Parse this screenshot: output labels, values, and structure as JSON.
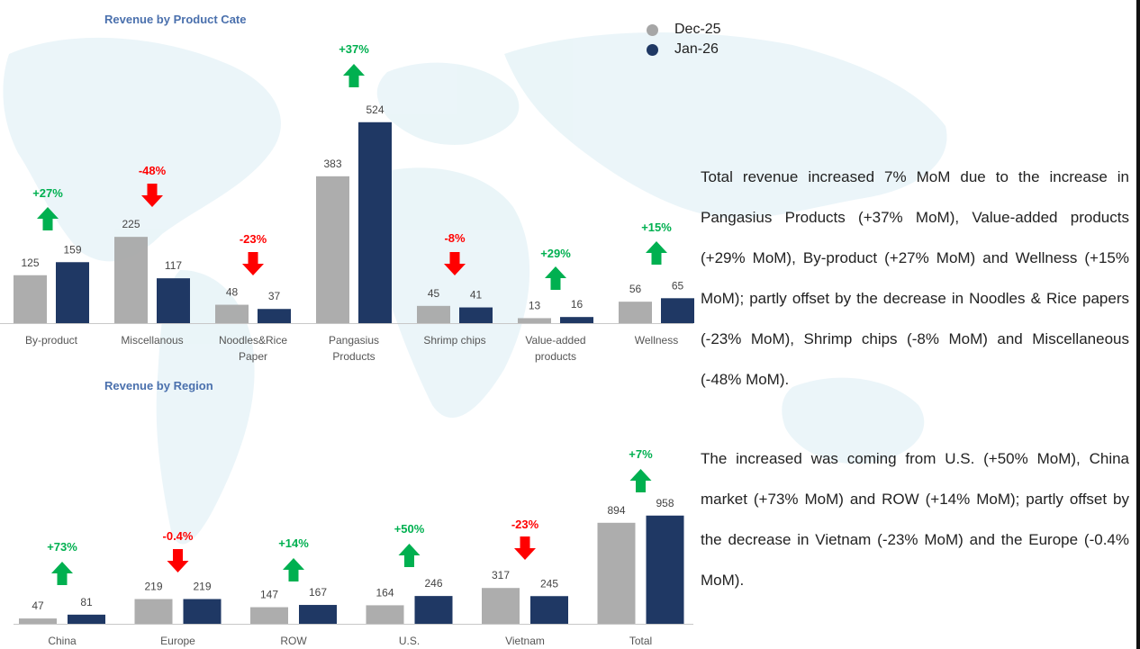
{
  "legend": {
    "items": [
      {
        "label": "Dec-25",
        "color": "#a6a6a6"
      },
      {
        "label": "Jan-26",
        "color": "#1f3864"
      }
    ]
  },
  "colors": {
    "up": "#00b050",
    "down": "#ff0000",
    "prev": "#a6a6a6",
    "curr": "#1f3864"
  },
  "icons": {
    "up": "up-arrow-icon",
    "down": "down-arrow-icon",
    "background": "world-map"
  },
  "chart_data": [
    {
      "type": "bar",
      "title": "Revenue by Product Cate",
      "categories": [
        "By-product",
        "Miscellanous",
        "Noodles&Rice Paper",
        "Pangasius Products",
        "Shrimp chips",
        "Value-added products",
        "Wellness"
      ],
      "series": [
        {
          "name": "Dec-25",
          "values": [
            125,
            225,
            48,
            383,
            45,
            13,
            56
          ]
        },
        {
          "name": "Jan-26",
          "values": [
            159,
            117,
            37,
            524,
            41,
            16,
            65
          ]
        }
      ],
      "changes": [
        "+27%",
        "-48%",
        "-23%",
        "+37%",
        "-8%",
        "+29%",
        "+15%"
      ],
      "directions": [
        "up",
        "down",
        "down",
        "up",
        "down",
        "up",
        "up"
      ]
    },
    {
      "type": "bar",
      "title": "Revenue by Region",
      "categories": [
        "China",
        "Europe",
        "ROW",
        "U.S.",
        "Vietnam",
        "Total"
      ],
      "series": [
        {
          "name": "Dec-25",
          "values": [
            47,
            219,
            147,
            164,
            317,
            894
          ]
        },
        {
          "name": "Jan-26",
          "values": [
            81,
            219,
            167,
            246,
            245,
            958
          ]
        }
      ],
      "changes": [
        "+73%",
        "-0.4%",
        "+14%",
        "+50%",
        "-23%",
        "+7%"
      ],
      "directions": [
        "up",
        "down",
        "up",
        "up",
        "down",
        "up"
      ]
    }
  ],
  "commentary": {
    "p1": "Total revenue increased 7% MoM due to the increase in Pangasius Products (+37% MoM), Value-added products (+29% MoM), By-product (+27% MoM) and Wellness (+15% MoM); partly offset by the decrease in Noodles & Rice papers (-23% MoM), Shrimp chips (-8% MoM) and Miscellaneous (-48% MoM).",
    "p2": "The increased was coming from U.S. (+50% MoM), China market (+73% MoM) and ROW (+14% MoM); partly offset by the decrease in Vietnam (-23% MoM) and the Europe (-0.4% MoM)."
  }
}
